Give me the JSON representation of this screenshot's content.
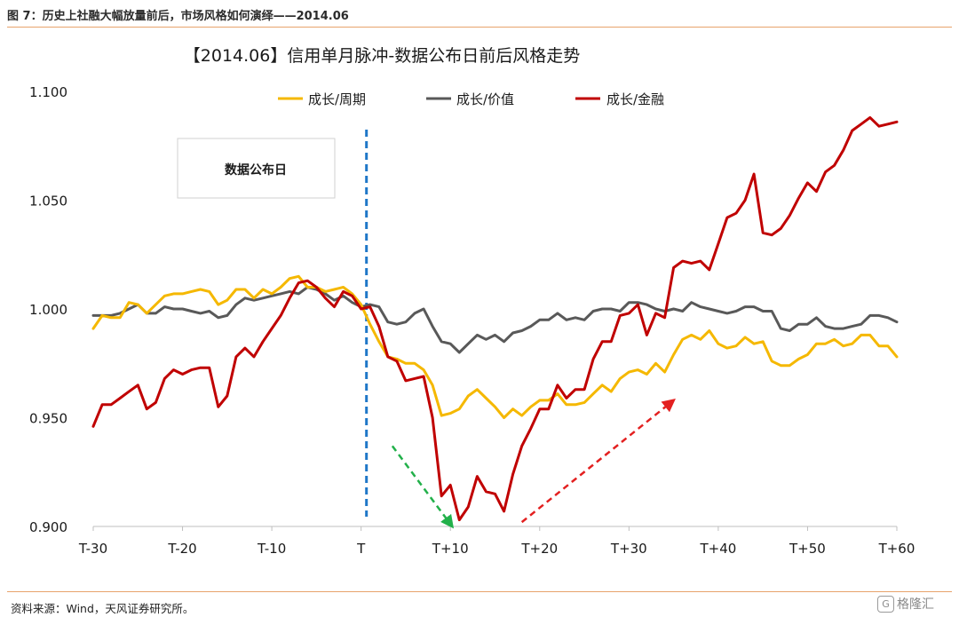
{
  "figure_title": "图 7：历史上社融大幅放量前后，市场风格如何演绎——2014.06",
  "source": "资料来源：Wind，天风证券研究所。",
  "watermark": {
    "icon": "G",
    "text": "格隆汇"
  },
  "chart_data": {
    "type": "line",
    "title": "【2014.06】信用单月脉冲-数据公布日前后风格走势",
    "xlabel": "",
    "ylabel": "",
    "x": [
      -30,
      -29,
      -28,
      -27,
      -26,
      -25,
      -24,
      -23,
      -22,
      -21,
      -20,
      -19,
      -18,
      -17,
      -16,
      -15,
      -14,
      -13,
      -12,
      -11,
      -10,
      -9,
      -8,
      -7,
      -6,
      -5,
      -4,
      -3,
      -2,
      -1,
      0,
      1,
      2,
      3,
      4,
      5,
      6,
      7,
      8,
      9,
      10,
      11,
      12,
      13,
      14,
      15,
      16,
      17,
      18,
      19,
      20,
      21,
      22,
      23,
      24,
      25,
      26,
      27,
      28,
      29,
      30,
      31,
      32,
      33,
      34,
      35,
      36,
      37,
      38,
      39,
      40,
      41,
      42,
      43,
      44,
      45,
      46,
      47,
      48,
      49,
      50,
      51,
      52,
      53,
      54,
      55,
      56,
      57,
      58,
      59,
      60
    ],
    "x_ticks": [
      {
        "value": -30,
        "label": "T-30"
      },
      {
        "value": -20,
        "label": "T-20"
      },
      {
        "value": -10,
        "label": "T-10"
      },
      {
        "value": 0,
        "label": "T"
      },
      {
        "value": 10,
        "label": "T+10"
      },
      {
        "value": 20,
        "label": "T+20"
      },
      {
        "value": 30,
        "label": "T+30"
      },
      {
        "value": 40,
        "label": "T+40"
      },
      {
        "value": 50,
        "label": "T+50"
      },
      {
        "value": 60,
        "label": "T+60"
      }
    ],
    "xlim": [
      -30,
      60
    ],
    "ylim": [
      0.9,
      1.1
    ],
    "y_ticks": [
      {
        "value": 0.9,
        "label": "0.900"
      },
      {
        "value": 0.95,
        "label": "0.950"
      },
      {
        "value": 1.0,
        "label": "1.000"
      },
      {
        "value": 1.05,
        "label": "1.050"
      },
      {
        "value": 1.1,
        "label": "1.100"
      }
    ],
    "grid": false,
    "legend_position": "top",
    "series": [
      {
        "name": "成长/周期",
        "color": "#f5b800",
        "values": [
          0.991,
          0.997,
          0.996,
          0.996,
          1.003,
          1.002,
          0.998,
          1.002,
          1.006,
          1.007,
          1.007,
          1.008,
          1.009,
          1.008,
          1.002,
          1.004,
          1.009,
          1.009,
          1.005,
          1.009,
          1.007,
          1.01,
          1.014,
          1.015,
          1.01,
          1.01,
          1.008,
          1.009,
          1.01,
          1.007,
          1.002,
          0.993,
          0.985,
          0.978,
          0.977,
          0.975,
          0.975,
          0.972,
          0.965,
          0.951,
          0.952,
          0.954,
          0.96,
          0.963,
          0.959,
          0.955,
          0.95,
          0.954,
          0.951,
          0.955,
          0.958,
          0.958,
          0.961,
          0.956,
          0.956,
          0.957,
          0.961,
          0.965,
          0.962,
          0.968,
          0.971,
          0.972,
          0.97,
          0.975,
          0.971,
          0.979,
          0.986,
          0.988,
          0.986,
          0.99,
          0.984,
          0.982,
          0.983,
          0.987,
          0.984,
          0.985,
          0.976,
          0.974,
          0.974,
          0.977,
          0.979,
          0.984,
          0.984,
          0.986,
          0.983,
          0.984,
          0.988,
          0.988,
          0.983,
          0.983,
          0.978
        ]
      },
      {
        "name": "成长/价值",
        "color": "#595959",
        "values": [
          0.997,
          0.997,
          0.997,
          0.998,
          1.0,
          1.002,
          0.998,
          0.998,
          1.001,
          1.0,
          1.0,
          0.999,
          0.998,
          0.999,
          0.996,
          0.997,
          1.002,
          1.005,
          1.004,
          1.005,
          1.006,
          1.007,
          1.008,
          1.007,
          1.01,
          1.009,
          1.007,
          1.004,
          1.006,
          1.003,
          1.001,
          1.002,
          1.001,
          0.994,
          0.993,
          0.994,
          0.998,
          1.0,
          0.992,
          0.985,
          0.984,
          0.98,
          0.984,
          0.988,
          0.986,
          0.988,
          0.985,
          0.989,
          0.99,
          0.992,
          0.995,
          0.995,
          0.998,
          0.995,
          0.996,
          0.995,
          0.999,
          1.0,
          1.0,
          0.999,
          1.003,
          1.003,
          1.002,
          1.0,
          0.999,
          1.0,
          0.999,
          1.003,
          1.001,
          1.0,
          0.999,
          0.998,
          0.999,
          1.001,
          1.001,
          0.999,
          0.999,
          0.991,
          0.99,
          0.993,
          0.993,
          0.996,
          0.992,
          0.991,
          0.991,
          0.992,
          0.993,
          0.997,
          0.997,
          0.996,
          0.994
        ]
      },
      {
        "name": "成长/金融",
        "color": "#c00000",
        "values": [
          0.946,
          0.956,
          0.956,
          0.959,
          0.962,
          0.965,
          0.954,
          0.957,
          0.968,
          0.972,
          0.97,
          0.972,
          0.973,
          0.973,
          0.955,
          0.96,
          0.978,
          0.982,
          0.978,
          0.985,
          0.991,
          0.997,
          1.005,
          1.012,
          1.013,
          1.01,
          1.005,
          1.001,
          1.008,
          1.006,
          1.0,
          1.001,
          0.992,
          0.978,
          0.976,
          0.967,
          0.968,
          0.969,
          0.95,
          0.914,
          0.919,
          0.903,
          0.909,
          0.923,
          0.916,
          0.915,
          0.907,
          0.924,
          0.937,
          0.945,
          0.954,
          0.954,
          0.965,
          0.959,
          0.963,
          0.963,
          0.977,
          0.985,
          0.985,
          0.997,
          0.998,
          1.002,
          0.988,
          0.998,
          0.996,
          1.019,
          1.022,
          1.021,
          1.022,
          1.018,
          1.03,
          1.042,
          1.044,
          1.05,
          1.062,
          1.035,
          1.034,
          1.037,
          1.043,
          1.051,
          1.058,
          1.054,
          1.063,
          1.066,
          1.073,
          1.082,
          1.085,
          1.088,
          1.084,
          1.085,
          1.086
        ]
      }
    ],
    "annotations": {
      "release_box_text": "数据公布日",
      "release_line_x": 0.6,
      "release_line_color": "#1f77c8",
      "arrows": [
        {
          "name": "down-arrow",
          "color": "#22b04a",
          "from": [
            3.5,
            0.937
          ],
          "to": [
            10.2,
            0.9
          ]
        },
        {
          "name": "up-arrow",
          "color": "#e32020",
          "from": [
            18,
            0.902
          ],
          "to": [
            35,
            0.958
          ]
        }
      ]
    }
  }
}
